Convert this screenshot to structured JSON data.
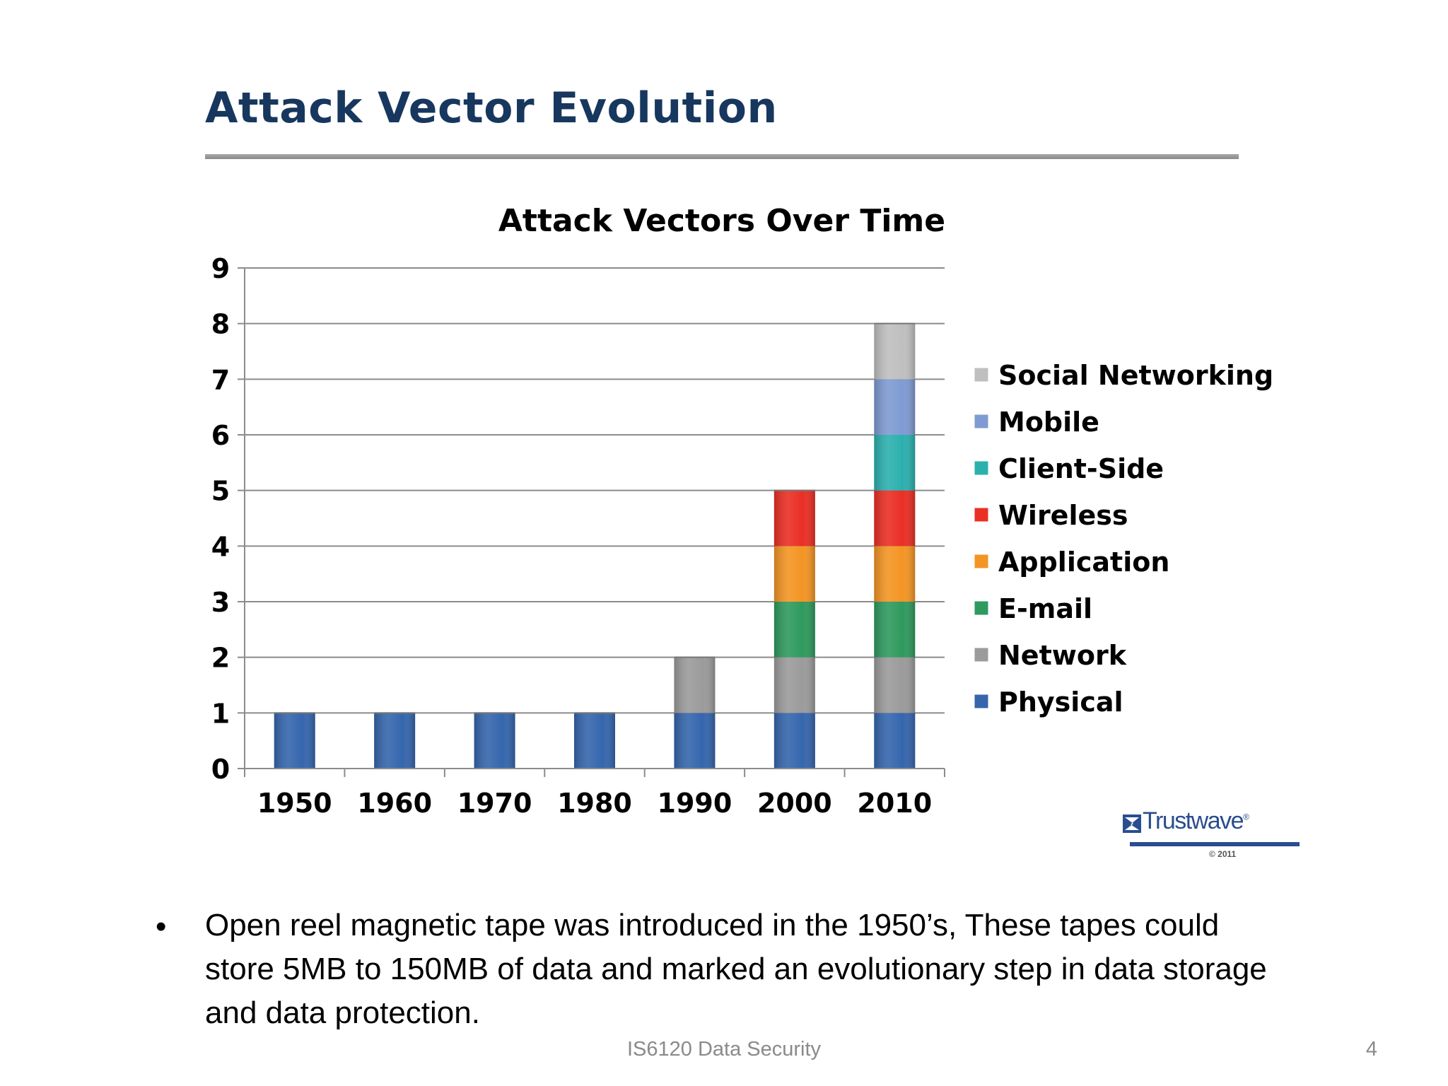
{
  "slide": {
    "title": "Attack Vector Evolution",
    "bullet": "Open reel magnetic tape was introduced in the 1950’s, These tapes could store 5MB to 150MB of data and marked an evolutionary step in data storage and data protection.",
    "footer": "IS6120 Data Security",
    "page_number": "4"
  },
  "logo": {
    "name": "Trustwave",
    "trademark": "®",
    "copyright": "© 2011"
  },
  "chart_data": {
    "type": "bar",
    "stacked": true,
    "title": "Attack Vectors Over Time",
    "xlabel": "",
    "ylabel": "",
    "ylim": [
      0,
      9
    ],
    "yticks": [
      "0",
      "1",
      "2",
      "3",
      "4",
      "5",
      "6",
      "7",
      "8",
      "9"
    ],
    "grid": true,
    "legend_position": "right",
    "categories": [
      "1950",
      "1960",
      "1970",
      "1980",
      "1990",
      "2000",
      "2010"
    ],
    "series": [
      {
        "name": "Physical",
        "color": "#3566ad",
        "values": [
          1,
          1,
          1,
          1,
          1,
          1,
          1
        ]
      },
      {
        "name": "Network",
        "color": "#9b9b9b",
        "values": [
          0,
          0,
          0,
          0,
          1,
          1,
          1
        ]
      },
      {
        "name": "E-mail",
        "color": "#2f9a5e",
        "values": [
          0,
          0,
          0,
          0,
          0,
          1,
          1
        ]
      },
      {
        "name": "Application",
        "color": "#f39524",
        "values": [
          0,
          0,
          0,
          0,
          0,
          1,
          1
        ]
      },
      {
        "name": "Wireless",
        "color": "#ea2f25",
        "values": [
          0,
          0,
          0,
          0,
          0,
          1,
          1
        ]
      },
      {
        "name": "Client-Side",
        "color": "#2bb0ae",
        "values": [
          0,
          0,
          0,
          0,
          0,
          0,
          1
        ]
      },
      {
        "name": "Mobile",
        "color": "#7f9bd2",
        "values": [
          0,
          0,
          0,
          0,
          0,
          0,
          1
        ]
      },
      {
        "name": "Social Networking",
        "color": "#bfbfbf",
        "values": [
          0,
          0,
          0,
          0,
          0,
          0,
          1
        ]
      }
    ]
  }
}
